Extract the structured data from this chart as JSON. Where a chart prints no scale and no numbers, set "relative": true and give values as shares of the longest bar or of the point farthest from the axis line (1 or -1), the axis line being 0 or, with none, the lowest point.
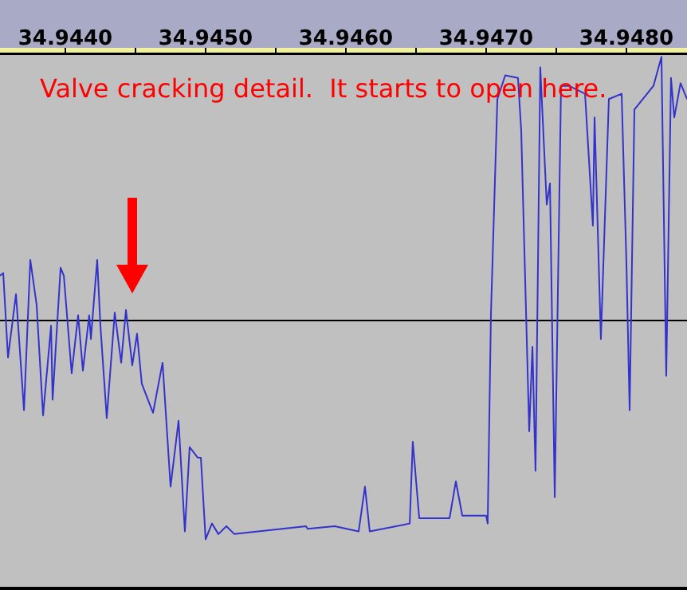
{
  "chart_data": {
    "type": "line",
    "relative": true,
    "marker": "none",
    "grid": false,
    "legend": false,
    "annotations": [
      "Valve cracking detail.  It starts to open here."
    ],
    "xlim": [
      34.943534,
      34.948432
    ],
    "xticks": [
      {
        "value": 34.944,
        "label": "34.9440"
      },
      {
        "value": 34.9445,
        "label": null
      },
      {
        "value": 34.945,
        "label": "34.9450"
      },
      {
        "value": 34.9455,
        "label": null
      },
      {
        "value": 34.946,
        "label": "34.9460"
      },
      {
        "value": 34.9465,
        "label": null
      },
      {
        "value": 34.947,
        "label": "34.9470"
      },
      {
        "value": 34.9475,
        "label": null
      },
      {
        "value": 34.948,
        "label": "34.9480"
      }
    ],
    "series": [
      {
        "color": "#3333cc",
        "x": [
          34.943534,
          34.943557,
          34.943591,
          34.943648,
          34.943705,
          34.94375,
          34.943795,
          34.943841,
          34.943898,
          34.943909,
          34.943966,
          34.943989,
          34.944045,
          34.944091,
          34.944125,
          34.94417,
          34.944182,
          34.944227,
          34.94425,
          34.944295,
          34.944352,
          34.944398,
          34.944432,
          34.944477,
          34.944511,
          34.944545,
          34.944625,
          34.944693,
          34.94475,
          34.944807,
          34.944852,
          34.944886,
          34.944943,
          34.944966,
          34.945,
          34.945045,
          34.945091,
          34.945148,
          34.945205,
          34.945716,
          34.945727,
          34.94592,
          34.946091,
          34.946136,
          34.94617,
          34.946455,
          34.946477,
          34.946523,
          34.946739,
          34.946784,
          34.94683,
          34.947,
          34.947011,
          34.947034,
          34.94708,
          34.947136,
          34.947227,
          34.94725,
          34.947307,
          34.94733,
          34.947352,
          34.947386,
          34.947432,
          34.947455,
          34.947489,
          34.947534,
          34.947591,
          34.947705,
          34.947761,
          34.947773,
          34.947818,
          34.947875,
          34.947966,
          34.948,
          34.948023,
          34.948057,
          34.948193,
          34.94825,
          34.948284,
          34.948318,
          34.948341,
          34.948386,
          34.948432
        ],
        "values": [
          0.17,
          0.18,
          -0.14,
          0.1,
          -0.34,
          0.23,
          0.06,
          -0.36,
          -0.02,
          -0.3,
          0.2,
          0.17,
          -0.2,
          0.02,
          -0.19,
          0.02,
          -0.07,
          0.23,
          -0.02,
          -0.37,
          0.03,
          -0.16,
          0.04,
          -0.17,
          -0.05,
          -0.24,
          -0.35,
          -0.16,
          -0.63,
          -0.38,
          -0.8,
          -0.48,
          -0.52,
          -0.52,
          -0.83,
          -0.77,
          -0.81,
          -0.78,
          -0.81,
          -0.78,
          -0.79,
          -0.78,
          -0.8,
          -0.63,
          -0.8,
          -0.77,
          -0.46,
          -0.75,
          -0.75,
          -0.61,
          -0.74,
          -0.74,
          -0.77,
          0.02,
          0.84,
          0.93,
          0.92,
          0.72,
          -0.42,
          -0.1,
          -0.57,
          0.96,
          0.44,
          0.52,
          -0.67,
          0.89,
          0.89,
          0.86,
          0.36,
          0.77,
          -0.07,
          0.84,
          0.86,
          0.22,
          -0.34,
          0.8,
          0.89,
          1,
          -0.21,
          0.92,
          0.77,
          0.9,
          0.84
        ]
      }
    ]
  }
}
